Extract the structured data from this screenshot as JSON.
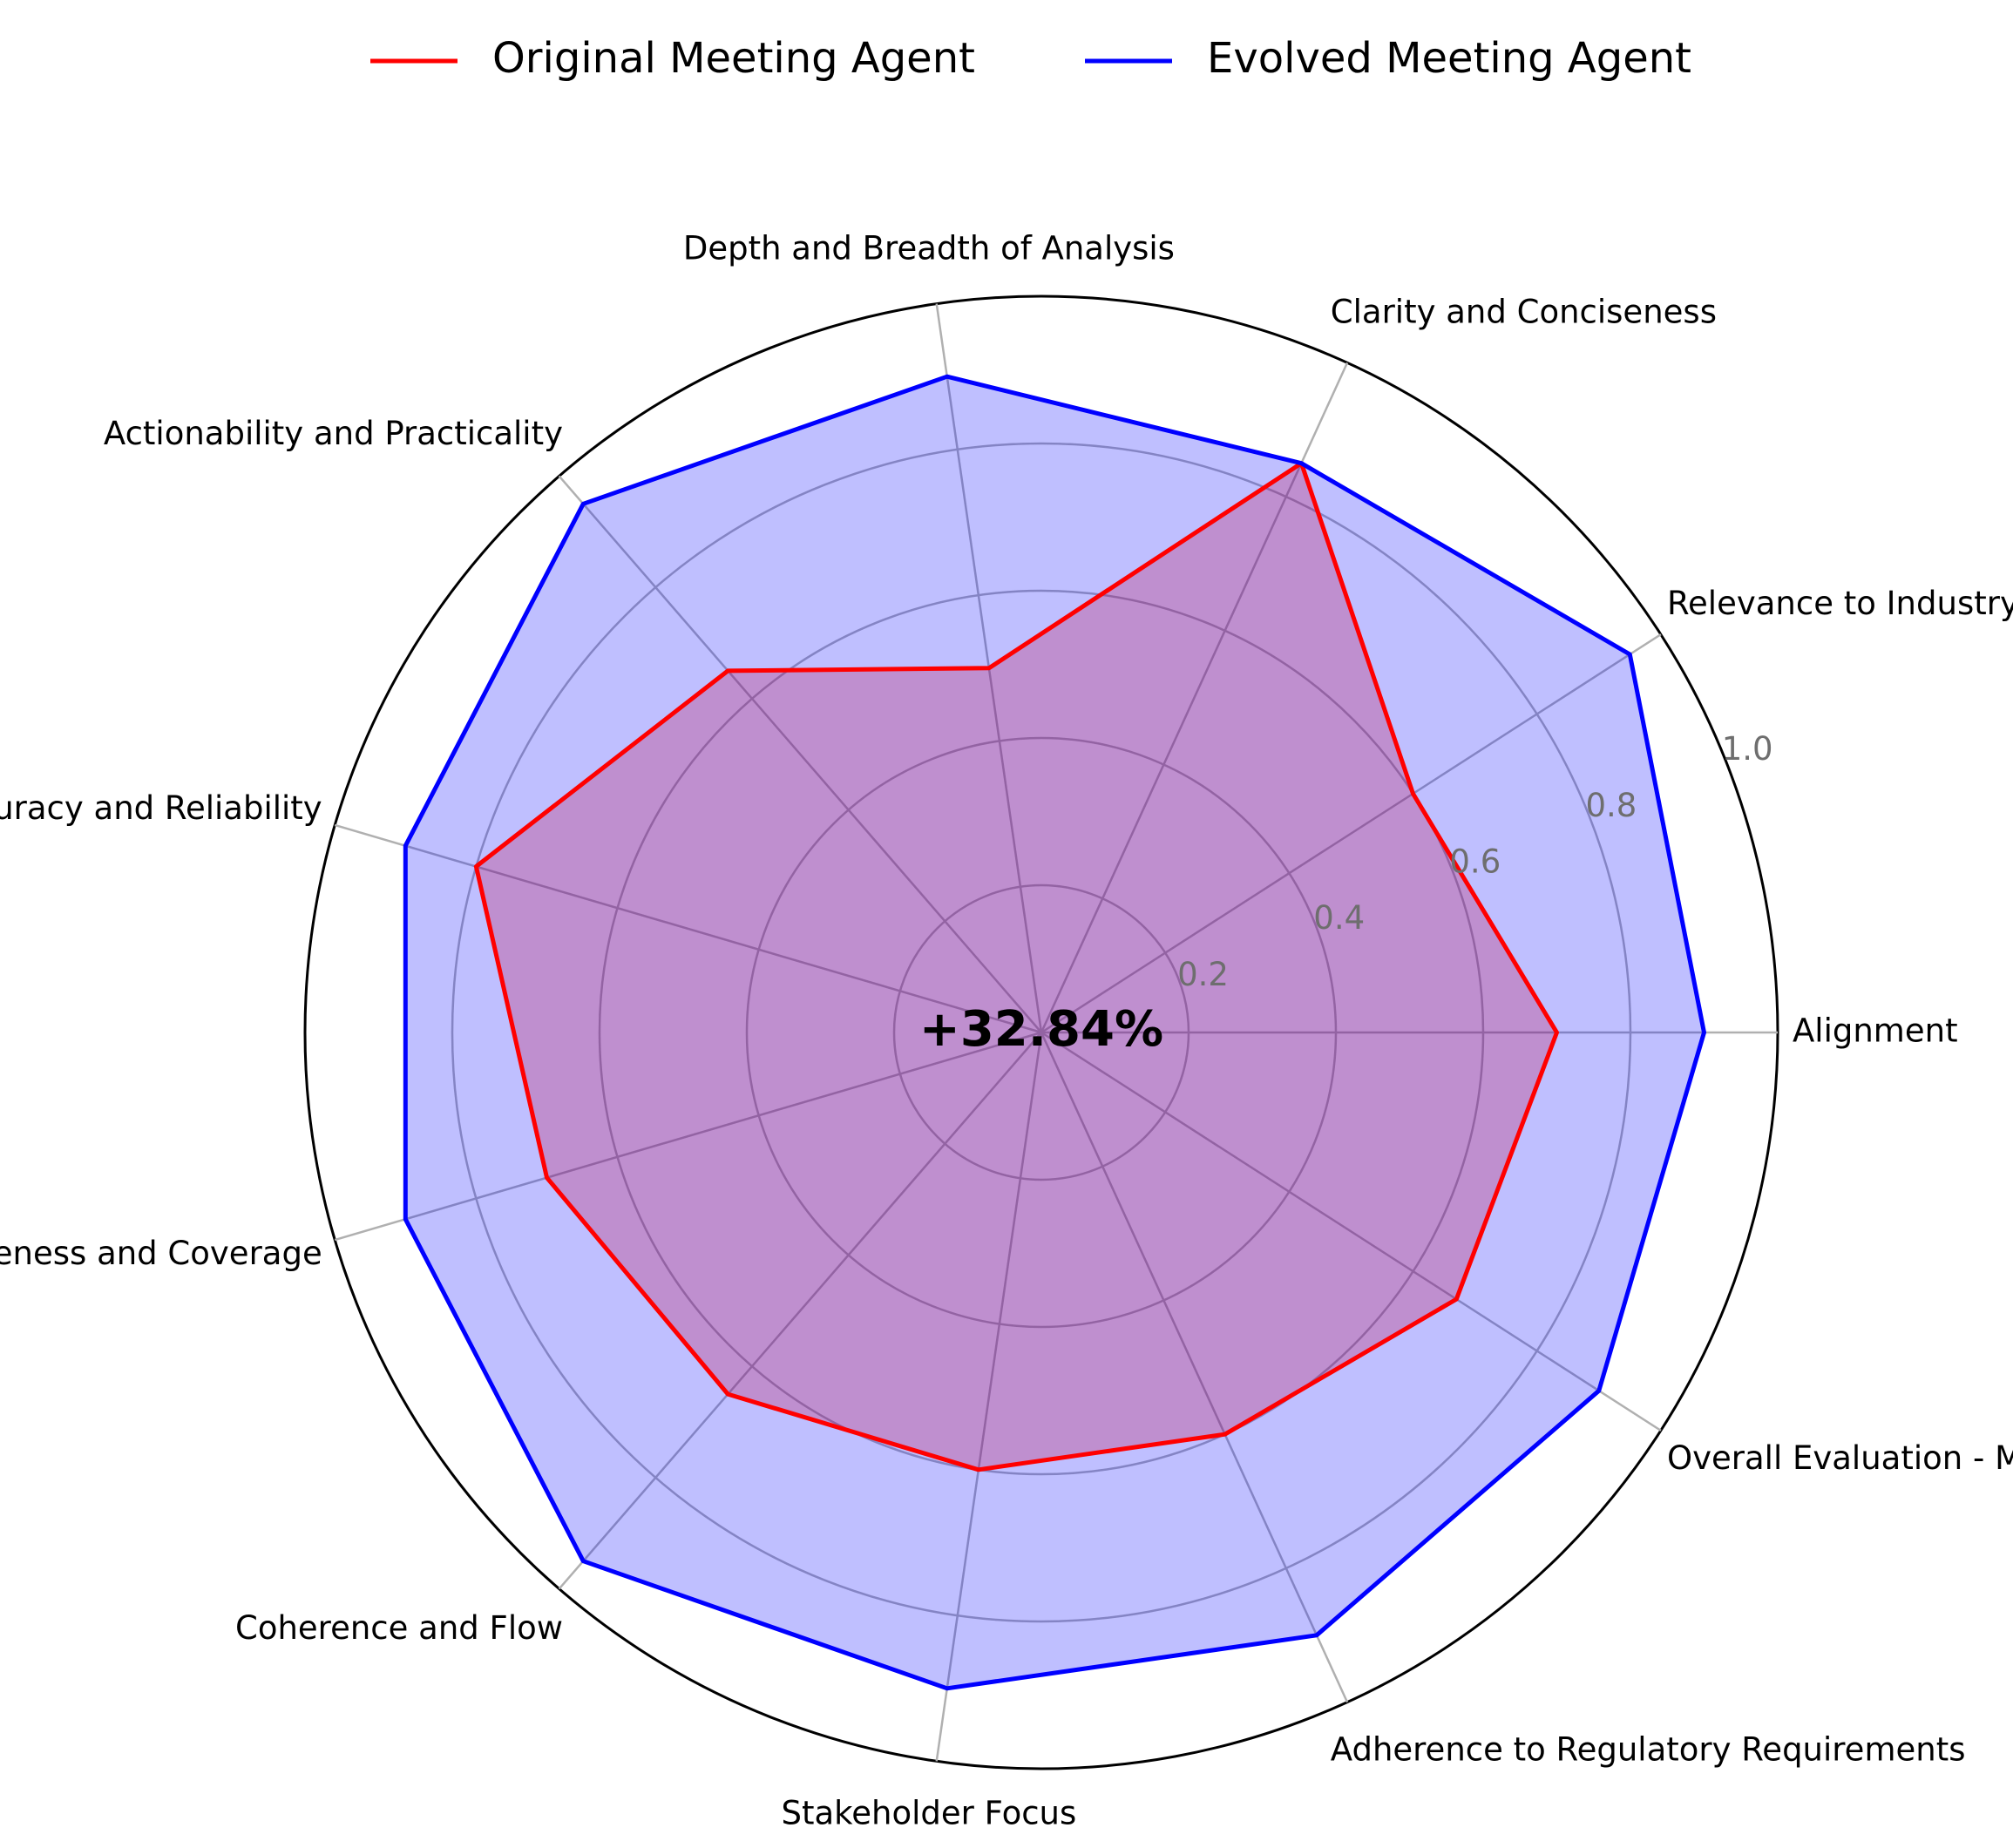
{
  "chart_data": {
    "type": "radar",
    "title": "",
    "center_text": "+32.84%",
    "categories": [
      "Alignment",
      "Relevance to Industry Trends",
      "Clarity and Conciseness",
      "Depth and Breadth of Analysis",
      "Actionability and Practicality",
      "Accuracy and Reliability",
      "Completeness and Coverage",
      "Coherence and Flow",
      "Stakeholder Focus",
      "Adherence to Regulatory Requirements",
      "Overall Evaluation - Mean Score"
    ],
    "rlim": [
      0,
      1.0
    ],
    "r_ticks": [
      "0.2",
      "0.4",
      "0.6",
      "0.8",
      "1.0"
    ],
    "grid": true,
    "legend_position": "top-center",
    "series": [
      {
        "name": "Original Meeting Agent",
        "color": "#ff0000",
        "fill": "#ff0000",
        "values": [
          0.7,
          0.6,
          0.85,
          0.5,
          0.65,
          0.8,
          0.7,
          0.65,
          0.6,
          0.6,
          0.67
        ]
      },
      {
        "name": "Evolved Meeting Agent",
        "color": "#0000ff",
        "fill": "#0000ff",
        "values": [
          0.9,
          0.95,
          0.85,
          0.9,
          0.95,
          0.9,
          0.9,
          0.95,
          0.9,
          0.9,
          0.9
        ]
      }
    ]
  }
}
